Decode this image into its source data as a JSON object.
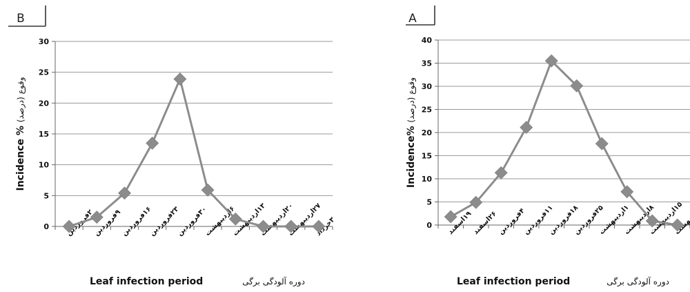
{
  "chart_data": [
    {
      "panel": "B",
      "type": "line",
      "categories": [
        "۲فروردین",
        "۹فروردین",
        "۱۶فروردین",
        "۲۳فروردین",
        "۳۰فروردین",
        "۶اردیبهشت",
        "۱۳اردیبهشت",
        "۲۰اردیبهشت",
        "۲۷اردیبهشت",
        "۳خرداد"
      ],
      "values": [
        0,
        1.5,
        5.4,
        13.5,
        23.9,
        5.9,
        1.2,
        0,
        0,
        0
      ],
      "ylim": [
        0,
        30
      ],
      "yticks": [
        0,
        5,
        10,
        15,
        20,
        25,
        30
      ],
      "xlabel_en": "Leaf infection period",
      "xlabel_fa": "دوره آلودگی برگی",
      "ylabel_en": "Incidence %",
      "ylabel_fa": "وقوع (درصد)",
      "grid": true,
      "color": "#8c8c8c"
    },
    {
      "panel": "A",
      "type": "line",
      "categories": [
        "۱۹اسفند",
        "۲۶اسفند",
        "۴فروردین",
        "۱۱فروردین",
        "۱۸فروردین",
        "۲۵فروردین",
        "۱اردیبهشت",
        "۸اردیبهشت",
        "۱۵اردیبهشت",
        "۲۲اردیبهشت"
      ],
      "values": [
        1.8,
        4.9,
        11.3,
        21.1,
        35.5,
        30.1,
        17.6,
        7.2,
        0.9,
        0
      ],
      "ylim": [
        0,
        40
      ],
      "yticks": [
        0,
        5,
        10,
        15,
        20,
        25,
        30,
        35,
        40
      ],
      "xlabel_en": "Leaf infection period",
      "xlabel_fa": "دوره آلودگی برگی",
      "ylabel_en": "Incidence%",
      "ylabel_fa": "وقوع (درصد)",
      "grid": true,
      "color": "#8c8c8c"
    }
  ]
}
